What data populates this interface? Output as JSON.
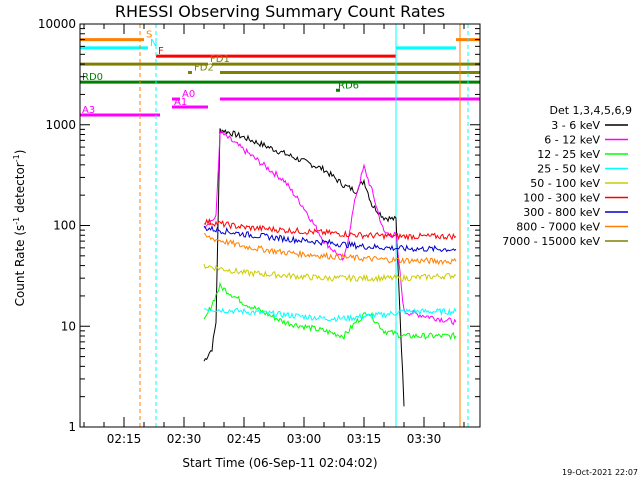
{
  "chart_data": {
    "type": "line",
    "title": "RHESSI Observing Summary Count Rates",
    "xlabel": "Start Time (06-Sep-11 02:04:02)",
    "ylabel_main": "Count Rate (s",
    "ylabel_sup1": "-1",
    "ylabel_mid": " detector",
    "ylabel_sup2": "-1",
    "ylabel_end": ")",
    "timestamp": "19-Oct-2021 22:07",
    "y_scale": "log",
    "ylim": [
      1,
      10000
    ],
    "xlim": [
      "02:04",
      "03:44"
    ],
    "x_ticks": [
      "02:15",
      "02:30",
      "02:45",
      "03:00",
      "03:15",
      "03:30"
    ],
    "y_ticks": [
      "1",
      "10",
      "100",
      "1000",
      "10000"
    ],
    "legend_title": "Det 1,3,4,5,6,9",
    "legend_position": "right",
    "series": [
      {
        "name": "3 - 6 keV",
        "color": "#000000",
        "points": [
          [
            "02:35",
            4.5
          ],
          [
            "02:37",
            6
          ],
          [
            "02:38",
            11
          ],
          [
            "02:39",
            900
          ],
          [
            "02:45",
            750
          ],
          [
            "02:55",
            520
          ],
          [
            "03:05",
            360
          ],
          [
            "03:10",
            250
          ],
          [
            "03:13",
            220
          ],
          [
            "03:15",
            280
          ],
          [
            "03:17",
            160
          ],
          [
            "03:20",
            120
          ],
          [
            "03:23",
            115
          ],
          [
            "03:25",
            1.6
          ]
        ]
      },
      {
        "name": "6 - 12 keV",
        "color": "#ff00ff",
        "points": [
          [
            "02:35",
            100
          ],
          [
            "02:38",
            120
          ],
          [
            "02:39",
            850
          ],
          [
            "02:45",
            560
          ],
          [
            "02:55",
            280
          ],
          [
            "03:00",
            150
          ],
          [
            "03:05",
            70
          ],
          [
            "03:10",
            45
          ],
          [
            "03:13",
            200
          ],
          [
            "03:15",
            380
          ],
          [
            "03:17",
            220
          ],
          [
            "03:20",
            85
          ],
          [
            "03:23",
            80
          ],
          [
            "03:25",
            14
          ],
          [
            "03:38",
            11
          ]
        ]
      },
      {
        "name": "12 - 25 keV",
        "color": "#00ff00",
        "points": [
          [
            "02:35",
            11
          ],
          [
            "02:39",
            25
          ],
          [
            "02:45",
            17
          ],
          [
            "02:55",
            11
          ],
          [
            "03:05",
            9
          ],
          [
            "03:10",
            8
          ],
          [
            "03:13",
            11
          ],
          [
            "03:16",
            14
          ],
          [
            "03:20",
            9
          ],
          [
            "03:25",
            8
          ],
          [
            "03:38",
            8
          ]
        ]
      },
      {
        "name": "25 - 50 keV",
        "color": "#00ffff",
        "points": [
          [
            "02:35",
            15
          ],
          [
            "02:45",
            14
          ],
          [
            "02:55",
            13
          ],
          [
            "03:05",
            12
          ],
          [
            "03:10",
            12
          ],
          [
            "03:20",
            13
          ],
          [
            "03:25",
            14
          ],
          [
            "03:38",
            14
          ]
        ]
      },
      {
        "name": "50 - 100 keV",
        "color": "#cccc00",
        "points": [
          [
            "02:35",
            40
          ],
          [
            "02:45",
            34
          ],
          [
            "02:55",
            32
          ],
          [
            "03:05",
            30
          ],
          [
            "03:15",
            30
          ],
          [
            "03:25",
            30
          ],
          [
            "03:38",
            32
          ]
        ]
      },
      {
        "name": "100 - 300 keV",
        "color": "#ff0000",
        "points": [
          [
            "02:35",
            110
          ],
          [
            "02:45",
            96
          ],
          [
            "02:55",
            90
          ],
          [
            "03:05",
            85
          ],
          [
            "03:15",
            80
          ],
          [
            "03:25",
            78
          ],
          [
            "03:38",
            78
          ]
        ]
      },
      {
        "name": "300 - 800 keV",
        "color": "#0000cc",
        "points": [
          [
            "02:35",
            95
          ],
          [
            "02:45",
            82
          ],
          [
            "02:55",
            74
          ],
          [
            "03:05",
            68
          ],
          [
            "03:15",
            62
          ],
          [
            "03:25",
            59
          ],
          [
            "03:38",
            58
          ]
        ]
      },
      {
        "name": "800 - 7000 keV",
        "color": "#ff8000",
        "points": [
          [
            "02:35",
            78
          ],
          [
            "02:45",
            62
          ],
          [
            "02:55",
            54
          ],
          [
            "03:05",
            50
          ],
          [
            "03:15",
            47
          ],
          [
            "03:25",
            45
          ],
          [
            "03:38",
            44
          ]
        ]
      },
      {
        "name": "7000 - 15000 keV",
        "color": "#808000",
        "points": [
          [
            "02:35",
            1
          ],
          [
            "03:38",
            1
          ]
        ]
      }
    ],
    "flag_bars": [
      {
        "label": "SAA",
        "display": "S",
        "color": "#ff8000",
        "y": 7000,
        "segments": [
          [
            "02:04",
            "02:20"
          ],
          [
            "03:38",
            "03:44"
          ]
        ]
      },
      {
        "label": "Night",
        "display": "N",
        "color": "#00ffff",
        "y": 5800,
        "segments": [
          [
            "02:04",
            "02:21"
          ],
          [
            "03:23",
            "03:38"
          ]
        ]
      },
      {
        "label": "Flare",
        "display": "F",
        "color": "#ff0000",
        "y": 4800,
        "segments": [
          [
            "02:23",
            "03:23"
          ]
        ]
      },
      {
        "label": "FD1",
        "display": "FD1",
        "color": "#808000",
        "y": 4000,
        "segments": [
          [
            "02:04",
            "02:36"
          ],
          [
            "02:37",
            "03:44"
          ]
        ]
      },
      {
        "label": "FD2",
        "display": "FD2",
        "color": "#808000",
        "y": 3300,
        "segments": [
          [
            "02:31",
            "02:32"
          ],
          [
            "02:39",
            "03:44"
          ]
        ]
      },
      {
        "label": "RD6",
        "display": "RD6",
        "color": "#008000",
        "y": 2200,
        "segments": [
          [
            "03:08",
            "03:09"
          ]
        ]
      },
      {
        "label": "RD0",
        "display": "RD0",
        "color": "#008000",
        "y": 2650,
        "segments": [
          [
            "02:04",
            "03:44"
          ]
        ]
      },
      {
        "label": "A0",
        "display": "A0",
        "color": "#ff00ff",
        "y": 1800,
        "segments": [
          [
            "02:27",
            "02:29"
          ],
          [
            "02:39",
            "03:44"
          ]
        ]
      },
      {
        "label": "A1",
        "display": "A1",
        "color": "#ff00ff",
        "y": 1500,
        "segments": [
          [
            "02:27",
            "02:36"
          ]
        ]
      },
      {
        "label": "A3",
        "display": "A3",
        "color": "#ff00ff",
        "y": 1250,
        "segments": [
          [
            "02:04",
            "02:24"
          ]
        ]
      }
    ],
    "vertical_markers": [
      {
        "x": "02:04",
        "color": "#00ffff",
        "style": "solid"
      },
      {
        "x": "02:19",
        "color": "#ff8000",
        "style": "dash"
      },
      {
        "x": "02:23",
        "color": "#00ffff",
        "style": "dash"
      },
      {
        "x": "03:23",
        "color": "#00ffff",
        "style": "solid"
      },
      {
        "x": "03:39",
        "color": "#ff8000",
        "style": "solid"
      },
      {
        "x": "03:41",
        "color": "#00ffff",
        "style": "dash"
      }
    ]
  }
}
